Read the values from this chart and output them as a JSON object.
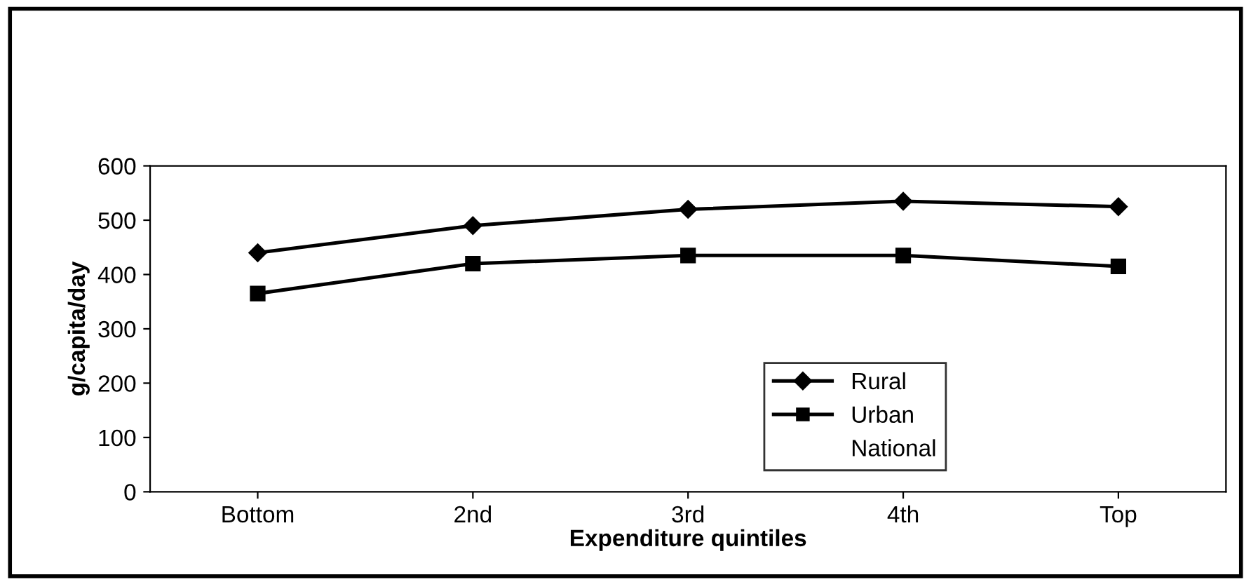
{
  "chart_data": {
    "type": "line",
    "xlabel": "Expenditure quintiles",
    "ylabel": "g/capita/day",
    "categories": [
      "Bottom",
      "2nd",
      "3rd",
      "4th",
      "Top"
    ],
    "series": [
      {
        "name": "Rural",
        "color": "#000000",
        "marker": "diamond",
        "values": [
          440,
          490,
          520,
          535,
          525
        ]
      },
      {
        "name": "Urban",
        "color": "#000000",
        "marker": "square",
        "values": [
          365,
          420,
          435,
          435,
          415
        ]
      },
      {
        "name": "National",
        "marker": "none",
        "values": [
          null,
          null,
          null,
          null,
          null
        ]
      }
    ],
    "ylim": [
      0,
      600
    ],
    "yticks": [
      0,
      100,
      200,
      300,
      400,
      500,
      600
    ],
    "grid": false,
    "legend": "bottom right",
    "line_style": "solid"
  }
}
